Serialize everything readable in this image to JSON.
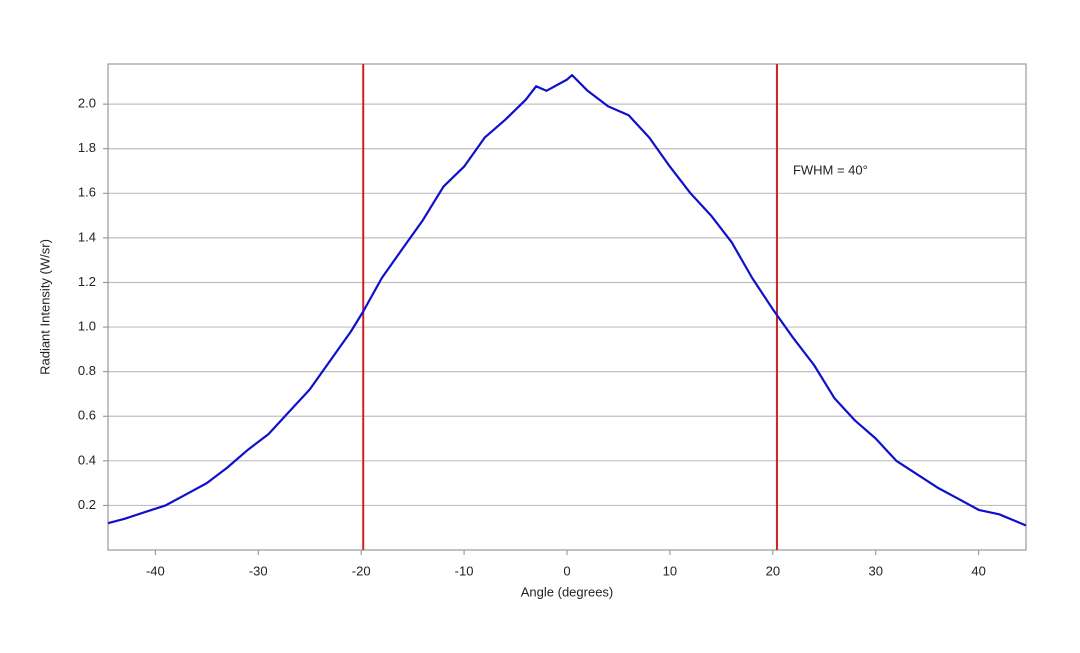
{
  "chart_data": {
    "type": "line",
    "xlabel": "Angle (degrees)",
    "ylabel": "Radiant Intensity (W/sr)",
    "x": [
      -44.6,
      -43,
      -41,
      -39,
      -37,
      -35,
      -33,
      -31,
      -29,
      -27,
      -25,
      -23,
      -21,
      -19.8,
      -18,
      -16,
      -14,
      -12,
      -10,
      -8,
      -6,
      -4,
      -3,
      -2,
      0,
      0.5,
      2,
      4,
      6,
      8,
      10,
      12,
      14,
      16,
      18,
      20,
      22,
      24,
      26,
      28,
      30,
      32,
      34,
      36,
      38,
      40,
      42,
      44.6
    ],
    "series": [
      {
        "name": "Radiant Intensity",
        "color": "#1010cc",
        "values": [
          0.12,
          0.14,
          0.17,
          0.2,
          0.25,
          0.3,
          0.37,
          0.45,
          0.52,
          0.62,
          0.72,
          0.85,
          0.98,
          1.07,
          1.22,
          1.35,
          1.48,
          1.63,
          1.72,
          1.85,
          1.93,
          2.02,
          2.08,
          2.06,
          2.11,
          2.13,
          2.06,
          1.99,
          1.95,
          1.85,
          1.72,
          1.6,
          1.5,
          1.38,
          1.22,
          1.08,
          0.95,
          0.83,
          0.68,
          0.58,
          0.5,
          0.4,
          0.34,
          0.28,
          0.23,
          0.18,
          0.16,
          0.11
        ]
      }
    ],
    "xlim": [
      -44.6,
      44.6
    ],
    "ylim": [
      0,
      2.18
    ],
    "xticks": [
      -40,
      -30,
      -20,
      -10,
      0,
      10,
      20,
      30,
      40
    ],
    "yticks": [
      0.2,
      0.4,
      0.6,
      0.8,
      {
        "value": 1.0,
        "label": "1.0"
      },
      1.2,
      1.4,
      1.6,
      1.8,
      {
        "value": 2.0,
        "label": "2.0"
      }
    ],
    "grid": true,
    "vlines": [
      -19.8,
      20.4
    ],
    "vline_color": "#cc2222",
    "annotation": "FWHM = 40°"
  }
}
